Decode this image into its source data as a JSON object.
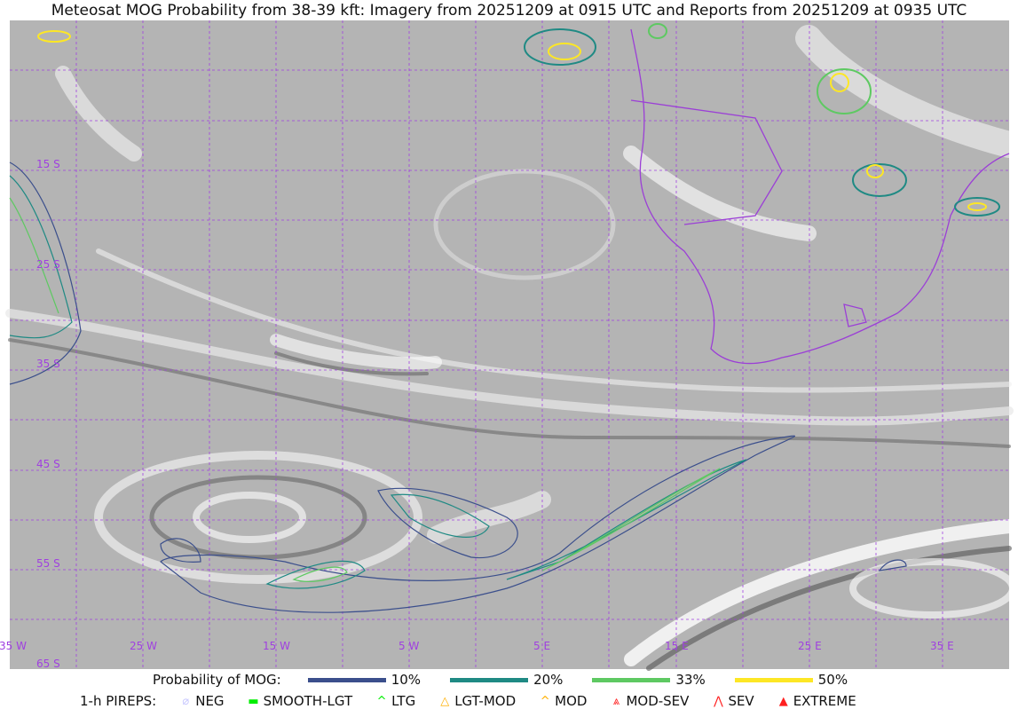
{
  "title": "Meteosat MOG Probability from 38-39 kft: Imagery from 20251209 at 0915 UTC and Reports from 20251209 at 0935 UTC",
  "map": {
    "lon_labels": [
      "35 W",
      "25 W",
      "15 W",
      "5 W",
      "5 E",
      "15 E",
      "25 E",
      "35 E"
    ],
    "lat_labels": [
      "15 S",
      "25 S",
      "35 S",
      "45 S",
      "55 S",
      "65 S"
    ],
    "grid_color": "#a040e0",
    "border_color": "#9b3fd6"
  },
  "legend": {
    "prob_title": "Probability of MOG:",
    "prob_levels": [
      {
        "label": "10%",
        "color": "#3b4f8c"
      },
      {
        "label": "20%",
        "color": "#1f8a84"
      },
      {
        "label": "33%",
        "color": "#5ec962"
      },
      {
        "label": "50%",
        "color": "#fde725"
      }
    ],
    "pirep_title": "1-h PIREPS:",
    "pireps": [
      {
        "label": "NEG",
        "color": "#c8c8ff",
        "icon": "neg-icon"
      },
      {
        "label": "SMOOTH-LGT",
        "color": "#00ee00",
        "icon": "smooth-lgt-icon"
      },
      {
        "label": "LTG",
        "color": "#00ee00",
        "icon": "ltg-icon"
      },
      {
        "label": "LGT-MOD",
        "color": "#ffb000",
        "icon": "lgt-mod-icon"
      },
      {
        "label": "MOD",
        "color": "#ffb000",
        "icon": "mod-icon"
      },
      {
        "label": "MOD-SEV",
        "color": "#ff2020",
        "icon": "mod-sev-icon"
      },
      {
        "label": "SEV",
        "color": "#ff2020",
        "icon": "sev-icon"
      },
      {
        "label": "EXTREME",
        "color": "#ff2020",
        "icon": "extreme-icon"
      }
    ]
  }
}
